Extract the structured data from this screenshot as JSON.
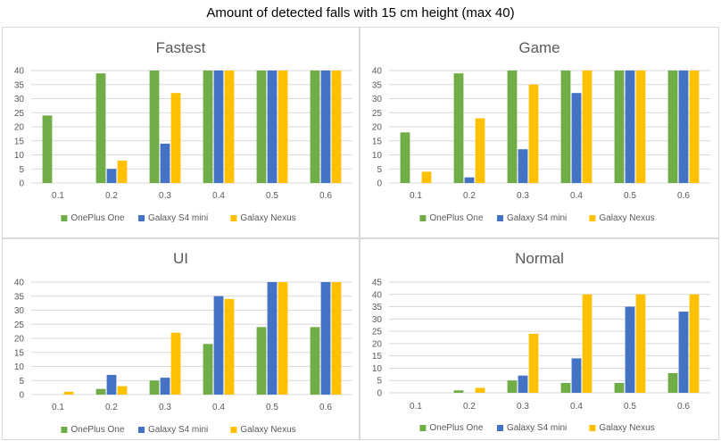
{
  "figure": {
    "title": "Amount of detected falls with 15 cm height (max 40)"
  },
  "colors": {
    "OnePlus One": "#70ad47",
    "Galaxy S4 mini": "#4472c4",
    "Galaxy Nexus": "#ffc000"
  },
  "chart_data": [
    {
      "type": "bar",
      "title": "Fastest",
      "categories": [
        "0.1",
        "0.2",
        "0.3",
        "0.4",
        "0.5",
        "0.6"
      ],
      "ylim": [
        0,
        40
      ],
      "yticks": [
        0,
        5,
        10,
        15,
        20,
        25,
        30,
        35,
        40
      ],
      "grid": true,
      "legend_position": "bottom",
      "series": [
        {
          "name": "OnePlus One",
          "values": [
            24,
            39,
            40,
            40,
            40,
            40
          ]
        },
        {
          "name": "Galaxy S4 mini",
          "values": [
            0,
            5,
            14,
            40,
            40,
            40
          ]
        },
        {
          "name": "Galaxy Nexus",
          "values": [
            0,
            8,
            32,
            40,
            40,
            40
          ]
        }
      ]
    },
    {
      "type": "bar",
      "title": "Game",
      "categories": [
        "0.1",
        "0.2",
        "0.3",
        "0.4",
        "0.5",
        "0.6"
      ],
      "ylim": [
        0,
        40
      ],
      "yticks": [
        0,
        5,
        10,
        15,
        20,
        25,
        30,
        35,
        40
      ],
      "grid": true,
      "legend_position": "bottom",
      "series": [
        {
          "name": "OnePlus One",
          "values": [
            18,
            39,
            40,
            40,
            40,
            40
          ]
        },
        {
          "name": "Galaxy S4 mini",
          "values": [
            0,
            2,
            12,
            32,
            40,
            40
          ]
        },
        {
          "name": "Galaxy Nexus",
          "values": [
            4,
            23,
            35,
            40,
            40,
            40
          ]
        }
      ]
    },
    {
      "type": "bar",
      "title": "UI",
      "categories": [
        "0.1",
        "0.2",
        "0.3",
        "0.4",
        "0.5",
        "0.6"
      ],
      "ylim": [
        0,
        40
      ],
      "yticks": [
        0,
        5,
        10,
        15,
        20,
        25,
        30,
        35,
        40
      ],
      "grid": true,
      "legend_position": "bottom",
      "series": [
        {
          "name": "OnePlus One",
          "values": [
            0,
            2,
            5,
            18,
            24,
            24
          ]
        },
        {
          "name": "Galaxy S4 mini",
          "values": [
            0,
            7,
            6,
            35,
            40,
            40
          ]
        },
        {
          "name": "Galaxy Nexus",
          "values": [
            1,
            3,
            22,
            34,
            40,
            40
          ]
        }
      ]
    },
    {
      "type": "bar",
      "title": "Normal",
      "categories": [
        "0.1",
        "0.2",
        "0.3",
        "0.4",
        "0.5",
        "0.6"
      ],
      "ylim": [
        0,
        45
      ],
      "yticks": [
        0,
        5,
        10,
        15,
        20,
        25,
        30,
        35,
        40,
        45
      ],
      "grid": true,
      "legend_position": "bottom",
      "series": [
        {
          "name": "OnePlus One",
          "values": [
            0,
            1,
            5,
            4,
            4,
            8
          ]
        },
        {
          "name": "Galaxy S4 mini",
          "values": [
            0,
            0,
            7,
            14,
            35,
            33
          ]
        },
        {
          "name": "Galaxy Nexus",
          "values": [
            0,
            2,
            24,
            40,
            40,
            40
          ]
        }
      ]
    }
  ]
}
